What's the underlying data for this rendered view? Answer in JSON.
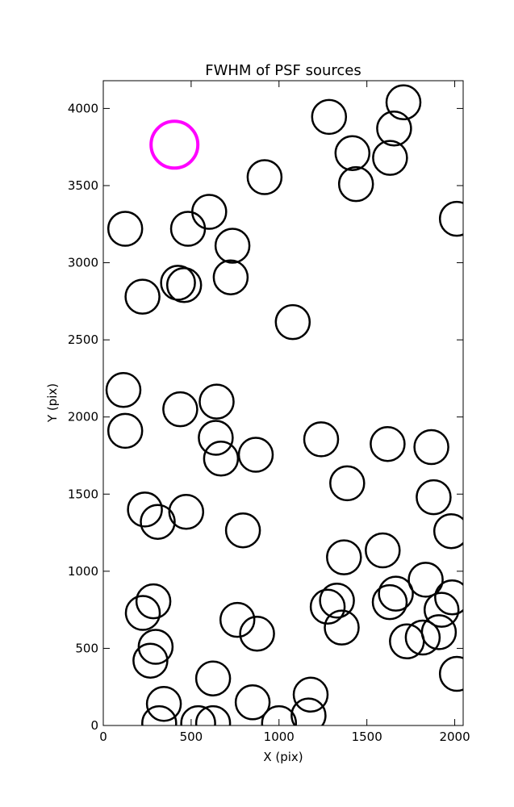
{
  "chart_data": {
    "type": "scatter",
    "title": "FWHM of PSF sources",
    "xlabel": "X (pix)",
    "ylabel": "Y (pix)",
    "xlim": [
      0,
      2048
    ],
    "ylim": [
      0,
      4180
    ],
    "xticks": [
      0,
      500,
      1000,
      1500,
      2000
    ],
    "yticks": [
      0,
      500,
      1000,
      1500,
      2000,
      2500,
      3000,
      3500,
      4000
    ],
    "grid": false,
    "legend": "none",
    "marker": "open circle, size proportional to FWHM",
    "series": [
      {
        "color": "#000000",
        "points": [
          {
            "x": 1285,
            "y": 3945
          },
          {
            "x": 1708,
            "y": 4040
          },
          {
            "x": 1655,
            "y": 3870
          },
          {
            "x": 1418,
            "y": 3710
          },
          {
            "x": 1632,
            "y": 3680
          },
          {
            "x": 1438,
            "y": 3510
          },
          {
            "x": 918,
            "y": 3555
          },
          {
            "x": 603,
            "y": 3330
          },
          {
            "x": 2012,
            "y": 3285
          },
          {
            "x": 125,
            "y": 3220
          },
          {
            "x": 482,
            "y": 3220
          },
          {
            "x": 735,
            "y": 3110
          },
          {
            "x": 725,
            "y": 2905
          },
          {
            "x": 425,
            "y": 2870
          },
          {
            "x": 460,
            "y": 2855
          },
          {
            "x": 223,
            "y": 2780
          },
          {
            "x": 1078,
            "y": 2615
          },
          {
            "x": 115,
            "y": 2175
          },
          {
            "x": 645,
            "y": 2100
          },
          {
            "x": 438,
            "y": 2050
          },
          {
            "x": 125,
            "y": 1910
          },
          {
            "x": 640,
            "y": 1865
          },
          {
            "x": 1240,
            "y": 1855
          },
          {
            "x": 1618,
            "y": 1825
          },
          {
            "x": 1867,
            "y": 1805
          },
          {
            "x": 868,
            "y": 1755
          },
          {
            "x": 670,
            "y": 1730
          },
          {
            "x": 1388,
            "y": 1570
          },
          {
            "x": 1880,
            "y": 1480
          },
          {
            "x": 237,
            "y": 1400
          },
          {
            "x": 472,
            "y": 1385
          },
          {
            "x": 310,
            "y": 1320
          },
          {
            "x": 795,
            "y": 1265
          },
          {
            "x": 1980,
            "y": 1260
          },
          {
            "x": 1590,
            "y": 1135
          },
          {
            "x": 1370,
            "y": 1090
          },
          {
            "x": 1835,
            "y": 945
          },
          {
            "x": 1665,
            "y": 855
          },
          {
            "x": 1985,
            "y": 830
          },
          {
            "x": 1330,
            "y": 810
          },
          {
            "x": 1630,
            "y": 800
          },
          {
            "x": 285,
            "y": 805
          },
          {
            "x": 1277,
            "y": 770
          },
          {
            "x": 1925,
            "y": 750
          },
          {
            "x": 225,
            "y": 730
          },
          {
            "x": 763,
            "y": 685
          },
          {
            "x": 1357,
            "y": 635
          },
          {
            "x": 1910,
            "y": 605
          },
          {
            "x": 875,
            "y": 595
          },
          {
            "x": 1818,
            "y": 570
          },
          {
            "x": 1728,
            "y": 545
          },
          {
            "x": 298,
            "y": 510
          },
          {
            "x": 268,
            "y": 420
          },
          {
            "x": 2012,
            "y": 335
          },
          {
            "x": 625,
            "y": 305
          },
          {
            "x": 1180,
            "y": 200
          },
          {
            "x": 850,
            "y": 150
          },
          {
            "x": 345,
            "y": 140
          },
          {
            "x": 1168,
            "y": 65
          },
          {
            "x": 318,
            "y": 15
          },
          {
            "x": 540,
            "y": 15
          },
          {
            "x": 625,
            "y": 15
          },
          {
            "x": 1000,
            "y": 15
          }
        ]
      },
      {
        "color": "#ff00ff",
        "points": [
          {
            "x": 405,
            "y": 3765
          }
        ]
      }
    ]
  }
}
